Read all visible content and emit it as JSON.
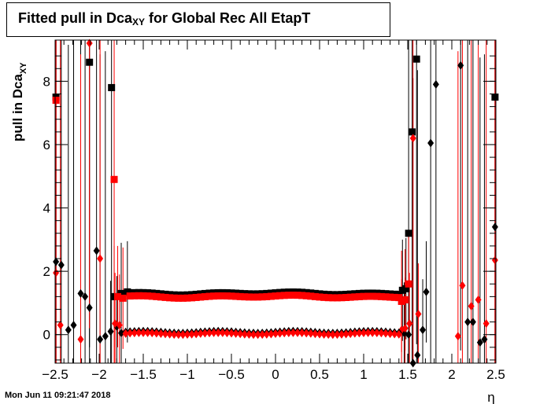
{
  "title": {
    "main": "Fitted pull in Dca",
    "sub": "XY",
    "rest": " for Global Rec All EtapT"
  },
  "footer": "Mon Jun 11 09:21:47 2018",
  "chart_data": {
    "type": "scatter",
    "xlabel": "η",
    "ylabel": {
      "main": "pull in Dca",
      "sub": "XY"
    },
    "xlim": [
      -2.5,
      2.5
    ],
    "ylim": [
      -0.9,
      9.3
    ],
    "x_ticks": [
      "−2.5",
      "−2",
      "−1.5",
      "−1",
      "−0.5",
      "0",
      "0.5",
      "1",
      "1.5",
      "2",
      "2.5"
    ],
    "x_tick_values": [
      -2.5,
      -2,
      -1.5,
      -1,
      -0.5,
      0,
      0.5,
      1,
      1.5,
      2,
      2.5
    ],
    "y_ticks": [
      "0",
      "2",
      "4",
      "6",
      "8"
    ],
    "y_tick_values": [
      0,
      2,
      4,
      6,
      8
    ],
    "series": [
      {
        "marker": "square",
        "color": "#000000",
        "points": [
          [
            -2.49,
            7.5
          ],
          [
            -2.11,
            8.6
          ],
          [
            -1.86,
            7.8
          ],
          [
            -1.83,
            1.2
          ],
          [
            -1.75,
            1.3
          ],
          [
            -1.68,
            1.35
          ],
          [
            1.51,
            3.2
          ],
          [
            1.55,
            6.4
          ],
          [
            1.6,
            8.7
          ],
          [
            1.48,
            1.45
          ],
          [
            1.44,
            1.4
          ],
          [
            2.49,
            7.5
          ]
        ]
      },
      {
        "marker": "square",
        "color": "#ff0000",
        "points": [
          [
            -2.49,
            7.4
          ],
          [
            -1.83,
            4.9
          ],
          [
            -1.79,
            1.2
          ],
          [
            -1.73,
            1.15
          ],
          [
            1.51,
            1.6
          ],
          [
            1.47,
            1.1
          ],
          [
            1.43,
            1.05
          ]
        ]
      },
      {
        "marker": "diamond",
        "color": "#000000",
        "points": [
          [
            -2.49,
            2.3
          ],
          [
            -2.43,
            2.2
          ],
          [
            -2.35,
            0.15
          ],
          [
            -2.29,
            0.3
          ],
          [
            -2.21,
            1.3
          ],
          [
            -2.16,
            1.2
          ],
          [
            -2.11,
            0.85
          ],
          [
            -2.03,
            2.65
          ],
          [
            -1.99,
            -0.15
          ],
          [
            -1.93,
            -0.05
          ],
          [
            -1.87,
            0.1
          ],
          [
            -1.8,
            0.25
          ],
          [
            -1.75,
            0.05
          ],
          [
            1.46,
            0.05
          ],
          [
            1.51,
            0.0
          ],
          [
            1.56,
            -0.9
          ],
          [
            1.61,
            -0.65
          ],
          [
            1.67,
            0.15
          ],
          [
            1.71,
            1.35
          ],
          [
            1.76,
            6.05
          ],
          [
            1.82,
            7.9
          ],
          [
            2.1,
            8.5
          ],
          [
            2.18,
            0.4
          ],
          [
            2.24,
            0.4
          ],
          [
            2.32,
            -0.25
          ],
          [
            2.37,
            -0.15
          ],
          [
            2.49,
            3.4
          ]
        ]
      },
      {
        "marker": "diamond",
        "color": "#ff0000",
        "points": [
          [
            -2.49,
            1.95
          ],
          [
            -2.44,
            0.3
          ],
          [
            -2.21,
            -0.15
          ],
          [
            -2.11,
            9.2
          ],
          [
            -1.99,
            2.4
          ],
          [
            -1.82,
            0.35
          ],
          [
            -1.77,
            0.3
          ],
          [
            1.43,
            0.15
          ],
          [
            1.47,
            0.2
          ],
          [
            1.52,
            0.35
          ],
          [
            1.56,
            6.2
          ],
          [
            1.62,
            0.65
          ],
          [
            2.07,
            -0.05
          ],
          [
            2.12,
            1.55
          ],
          [
            2.22,
            0.9
          ],
          [
            2.3,
            1.1
          ],
          [
            2.39,
            0.35
          ],
          [
            2.49,
            2.35
          ]
        ]
      }
    ],
    "bands": [
      {
        "marker": "square",
        "color": "#000000",
        "x_from": -1.65,
        "x_to": 1.4,
        "y": 1.3
      },
      {
        "marker": "square",
        "color": "#ff0000",
        "x_from": -1.65,
        "x_to": 1.4,
        "y": 1.2
      },
      {
        "marker": "diamond",
        "color": "#000000",
        "x_from": -1.7,
        "x_to": 1.4,
        "y": 0.08
      },
      {
        "marker": "diamond",
        "color": "#ff0000",
        "x_from": -1.7,
        "x_to": 1.4,
        "y": 0.03
      }
    ]
  }
}
